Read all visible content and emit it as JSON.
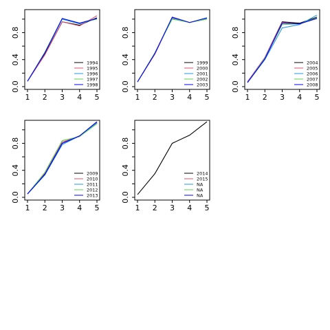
{
  "colors": {
    "palette": [
      "#000000",
      "#DF536B",
      "#61D04F",
      "#2297E6",
      "#0000FF"
    ],
    "axis": "#000000",
    "background": "#ffffff"
  },
  "chart_data": [
    {
      "type": "line",
      "x": [
        1,
        2,
        3,
        4,
        5
      ],
      "xlim": [
        1,
        5
      ],
      "ylim": [
        0,
        1.1
      ],
      "xticks": [
        "1",
        "2",
        "3",
        "4",
        "5"
      ],
      "yticks": [
        "0.0",
        "0.4",
        "0.8"
      ],
      "grid": false,
      "legend_position": "bottom-right",
      "series": [
        {
          "name": "1994",
          "color": "#000000",
          "values": [
            0.08,
            0.48,
            0.96,
            0.91,
            1.02
          ]
        },
        {
          "name": "1995",
          "color": "#DF536B",
          "values": [
            0.08,
            0.47,
            0.96,
            0.9,
            1.05
          ]
        },
        {
          "name": "1996",
          "color": "#2297E6",
          "values": [
            0.08,
            0.5,
            1.0,
            0.93,
            1.01
          ]
        },
        {
          "name": "1997",
          "color": "#61D04F",
          "values": [
            0.08,
            0.51,
            1.01,
            0.94,
            1.0
          ]
        },
        {
          "name": "1998",
          "color": "#0000FF",
          "values": [
            0.08,
            0.5,
            1.01,
            0.94,
            1.01
          ]
        }
      ]
    },
    {
      "type": "line",
      "x": [
        1,
        2,
        3,
        4,
        5
      ],
      "xlim": [
        1,
        5
      ],
      "ylim": [
        0,
        1.1
      ],
      "xticks": [
        "1",
        "2",
        "3",
        "4",
        "5"
      ],
      "yticks": [
        "0.0",
        "0.4",
        "0.8"
      ],
      "grid": false,
      "legend_position": "bottom-right",
      "series": [
        {
          "name": "1999",
          "color": "#000000",
          "values": [
            0.07,
            0.49,
            1.02,
            0.95,
            1.01
          ]
        },
        {
          "name": "2000",
          "color": "#DF536B",
          "values": [
            0.07,
            0.48,
            1.02,
            0.95,
            1.0
          ]
        },
        {
          "name": "2001",
          "color": "#2297E6",
          "values": [
            0.07,
            0.5,
            1.01,
            0.95,
            1.01
          ]
        },
        {
          "name": "2002",
          "color": "#61D04F",
          "values": [
            0.07,
            0.5,
            1.0,
            0.95,
            1.0
          ]
        },
        {
          "name": "2003",
          "color": "#0000FF",
          "values": [
            0.07,
            0.49,
            1.03,
            0.95,
            1.02
          ]
        }
      ]
    },
    {
      "type": "line",
      "x": [
        1,
        2,
        3,
        4,
        5
      ],
      "xlim": [
        1,
        5
      ],
      "ylim": [
        0,
        1.1
      ],
      "xticks": [
        "1",
        "2",
        "3",
        "4",
        "5"
      ],
      "yticks": [
        "0.0",
        "0.4",
        "0.8"
      ],
      "grid": false,
      "legend_position": "bottom-right",
      "series": [
        {
          "name": "2004",
          "color": "#000000",
          "values": [
            0.07,
            0.43,
            0.96,
            0.94,
            1.03
          ]
        },
        {
          "name": "2005",
          "color": "#DF536B",
          "values": [
            0.07,
            0.43,
            0.95,
            0.93,
            1.02
          ]
        },
        {
          "name": "2006",
          "color": "#2297E6",
          "values": [
            0.06,
            0.4,
            0.87,
            0.92,
            1.06
          ]
        },
        {
          "name": "2007",
          "color": "#61D04F",
          "values": [
            0.06,
            0.42,
            0.92,
            0.93,
            1.02
          ]
        },
        {
          "name": "2008",
          "color": "#0000FF",
          "values": [
            0.06,
            0.41,
            0.94,
            0.93,
            1.01
          ]
        }
      ]
    },
    {
      "type": "line",
      "x": [
        1,
        2,
        3,
        4,
        5
      ],
      "xlim": [
        1,
        5
      ],
      "ylim": [
        0,
        1.1
      ],
      "xticks": [
        "1",
        "2",
        "3",
        "4",
        "5"
      ],
      "yticks": [
        "0.0",
        "0.4",
        "0.8"
      ],
      "grid": false,
      "legend_position": "bottom-right",
      "series": [
        {
          "name": "2009",
          "color": "#000000",
          "values": [
            0.05,
            0.35,
            0.8,
            0.91,
            1.1
          ]
        },
        {
          "name": "2010",
          "color": "#DF536B",
          "values": [
            0.05,
            0.36,
            0.82,
            0.9,
            1.11
          ]
        },
        {
          "name": "2011",
          "color": "#2297E6",
          "values": [
            0.05,
            0.33,
            0.78,
            0.91,
            1.1
          ]
        },
        {
          "name": "2012",
          "color": "#61D04F",
          "values": [
            0.05,
            0.37,
            0.84,
            0.9,
            1.09
          ]
        },
        {
          "name": "2013",
          "color": "#0000FF",
          "values": [
            0.05,
            0.34,
            0.8,
            0.91,
            1.12
          ]
        }
      ]
    },
    {
      "type": "line",
      "x": [
        1,
        2,
        3,
        4,
        5
      ],
      "xlim": [
        1,
        5
      ],
      "ylim": [
        0,
        1.1
      ],
      "xticks": [
        "1",
        "2",
        "3",
        "4",
        "5"
      ],
      "yticks": [
        "0.0",
        "0.4",
        "0.8"
      ],
      "grid": false,
      "legend_position": "bottom-right",
      "series": [
        {
          "name": "2014",
          "color": "#000000",
          "values": [
            0.04,
            0.35,
            0.8,
            0.92,
            1.12
          ]
        },
        {
          "name": "2015",
          "color": "#DF536B",
          "values": null
        },
        {
          "name": "NA",
          "color": "#2297E6",
          "values": null
        },
        {
          "name": "NA",
          "color": "#61D04F",
          "values": null
        },
        {
          "name": "NA",
          "color": "#0000FF",
          "values": null
        }
      ]
    }
  ]
}
